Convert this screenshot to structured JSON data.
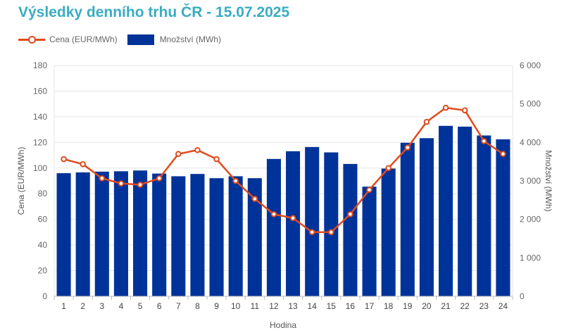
{
  "chart_data": {
    "type": "bar",
    "title": "Výsledky denního trhu ČR - 15.07.2025",
    "xlabel": "Hodina",
    "ylabel_left": "Cena (EUR/MWh)",
    "ylabel_right": "Množství (MWh)",
    "categories": [
      "1",
      "2",
      "3",
      "4",
      "5",
      "6",
      "7",
      "8",
      "9",
      "10",
      "11",
      "12",
      "13",
      "14",
      "15",
      "16",
      "17",
      "18",
      "19",
      "20",
      "21",
      "22",
      "23",
      "24"
    ],
    "series": [
      {
        "name": "Cena (EUR/MWh)",
        "type": "line",
        "axis": "left",
        "color": "#e04b1d",
        "values": [
          107,
          103,
          92,
          88,
          87,
          92,
          111,
          114,
          107,
          90,
          76,
          64,
          61,
          50,
          50,
          64,
          83,
          100,
          116,
          136,
          147,
          145,
          121,
          111
        ]
      },
      {
        "name": "Množství (MWh)",
        "type": "bar",
        "axis": "right",
        "color": "#003399",
        "values": [
          3200,
          3220,
          3240,
          3250,
          3270,
          3190,
          3120,
          3180,
          3070,
          3120,
          3070,
          3570,
          3770,
          3880,
          3740,
          3440,
          2850,
          3320,
          3990,
          4110,
          4430,
          4410,
          4180,
          4080
        ]
      }
    ],
    "ylim_left": [
      0,
      180
    ],
    "ylim_right": [
      0,
      6000
    ],
    "yticks_left": [
      "0",
      "20",
      "40",
      "60",
      "80",
      "100",
      "120",
      "140",
      "160",
      "180"
    ],
    "yticks_right": [
      "0",
      "1 000",
      "2 000",
      "3 000",
      "4 000",
      "5 000",
      "6 000"
    ],
    "grid": true,
    "legend_position": "top-left"
  }
}
